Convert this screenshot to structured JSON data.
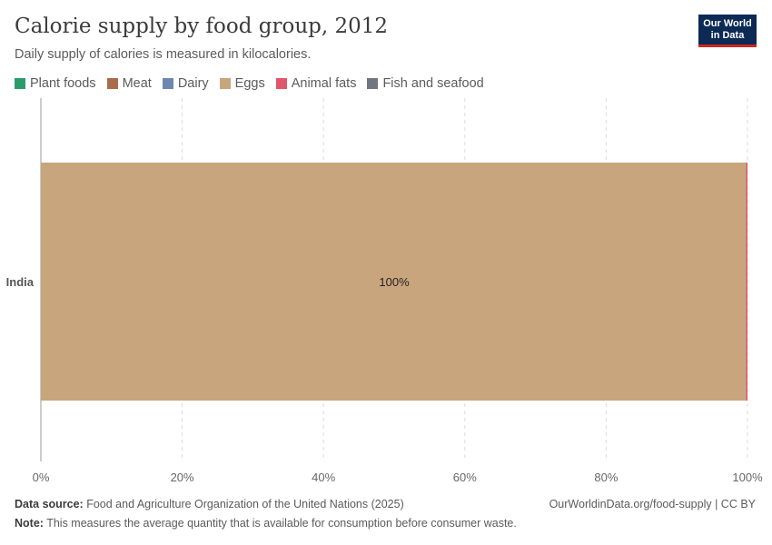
{
  "header": {
    "title": "Calorie supply by food group, 2012",
    "subtitle": "Daily supply of calories is measured in kilocalories.",
    "logo": "Our World in Data"
  },
  "footer": {
    "source_label": "Data source:",
    "source": "Food and Agriculture Organization of the United Nations (2025)",
    "url": "OurWorldinData.org/food-supply | CC BY",
    "note_label": "Note:",
    "note": "This measures the average quantity that is available for consumption before consumer waste."
  },
  "chart_data": {
    "type": "bar",
    "orientation": "horizontal",
    "stacked": "relative",
    "categories": [
      "India"
    ],
    "series": [
      {
        "name": "Plant foods",
        "values": [
          0
        ],
        "color": "#2c9b6a"
      },
      {
        "name": "Meat",
        "values": [
          0
        ],
        "color": "#a86c4c"
      },
      {
        "name": "Dairy",
        "values": [
          0
        ],
        "color": "#6d87b0"
      },
      {
        "name": "Eggs",
        "values": [
          99.8
        ],
        "color": "#c9a57d"
      },
      {
        "name": "Animal fats",
        "values": [
          0.2
        ],
        "color": "#e0566a"
      },
      {
        "name": "Fish and seafood",
        "values": [
          0
        ],
        "color": "#737680"
      }
    ],
    "data_labels": [
      "100%"
    ],
    "xlim": [
      0,
      100
    ],
    "x_ticks": [
      "0%",
      "20%",
      "40%",
      "60%",
      "80%",
      "100%"
    ],
    "grid": true,
    "legend": "top"
  }
}
